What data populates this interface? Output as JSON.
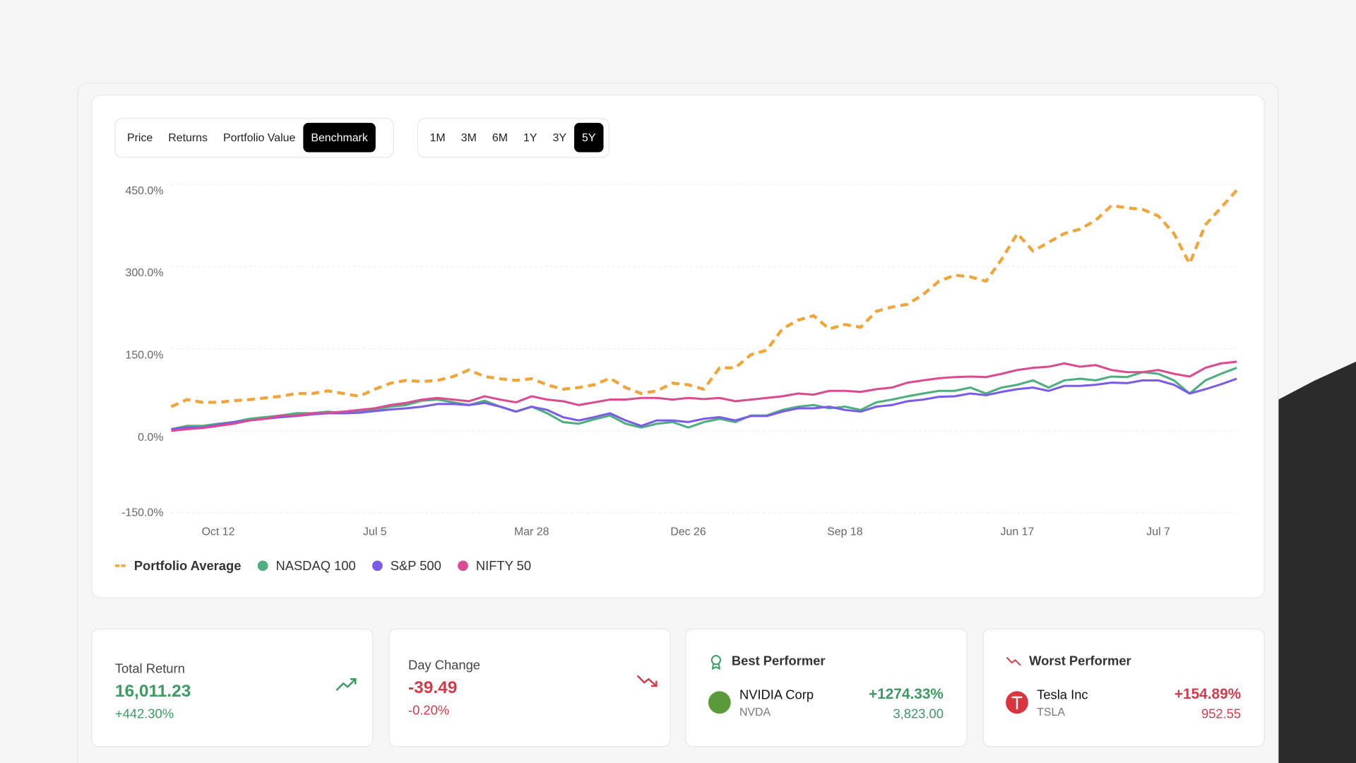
{
  "tabs": {
    "view": [
      "Price",
      "Returns",
      "Portfolio Value",
      "Benchmark"
    ],
    "active_view": "Benchmark",
    "range": [
      "1M",
      "3M",
      "6M",
      "1Y",
      "3Y",
      "5Y"
    ],
    "active_range": "5Y"
  },
  "chart_data": {
    "type": "line",
    "legend": "bottom",
    "grid": true,
    "categories": [
      null,
      null,
      null,
      "Oct 12",
      null,
      null,
      null,
      null,
      null,
      null,
      null,
      null,
      null,
      "Jul 5",
      null,
      null,
      null,
      null,
      null,
      null,
      null,
      null,
      null,
      "Mar 28",
      null,
      null,
      null,
      null,
      null,
      null,
      null,
      null,
      null,
      "Dec 26",
      null,
      null,
      null,
      null,
      null,
      null,
      null,
      null,
      null,
      "Sep 18",
      null,
      null,
      null,
      null,
      null,
      null,
      null,
      null,
      null,
      null,
      "Jun 17",
      null,
      null,
      null,
      null,
      null,
      null,
      null,
      null,
      "Jul 7",
      null,
      null,
      null,
      null,
      null
    ],
    "ylim": [
      -150,
      450
    ],
    "yticks": [
      {
        "value": -150,
        "label": "-150.0%"
      },
      {
        "value": 0,
        "label": "0.0%"
      },
      {
        "value": 150,
        "label": "150.0%"
      },
      {
        "value": 300,
        "label": "300.0%"
      },
      {
        "value": 450,
        "label": "450.0%"
      }
    ],
    "series": [
      {
        "name": "Portfolio Average",
        "color": "#f0a53a",
        "dashed": true,
        "values": [
          44,
          57,
          52,
          52,
          55,
          57,
          60,
          63,
          68,
          68,
          73,
          68,
          63,
          76,
          87,
          92,
          90,
          92,
          99,
          111,
          99,
          95,
          92,
          95,
          84,
          76,
          79,
          84,
          96,
          79,
          68,
          73,
          87,
          84,
          76,
          115,
          115,
          139,
          147,
          186,
          202,
          210,
          186,
          194,
          189,
          218,
          226,
          231,
          249,
          273,
          284,
          281,
          273,
          313,
          360,
          328,
          344,
          360,
          368,
          384,
          411,
          407,
          404,
          392,
          360,
          305,
          376,
          407,
          439
        ]
      },
      {
        "name": "NASDAQ 100",
        "color": "#4caf7d",
        "values": [
          3,
          9,
          9,
          13,
          16,
          22,
          25,
          28,
          32,
          32,
          35,
          32,
          35,
          39,
          44,
          47,
          55,
          57,
          52,
          47,
          55,
          44,
          35,
          44,
          32,
          16,
          13,
          21,
          28,
          13,
          6,
          13,
          16,
          6,
          16,
          22,
          16,
          28,
          28,
          38,
          44,
          47,
          41,
          44,
          38,
          52,
          57,
          63,
          68,
          73,
          73,
          79,
          68,
          79,
          84,
          92,
          79,
          92,
          95,
          92,
          99,
          98,
          107,
          104,
          92,
          68,
          92,
          104,
          115
        ]
      },
      {
        "name": "S&P 500",
        "color": "#7b5ce6",
        "values": [
          3,
          6,
          6,
          11,
          16,
          19,
          22,
          25,
          27,
          30,
          32,
          32,
          33,
          36,
          39,
          41,
          44,
          49,
          49,
          47,
          51,
          44,
          35,
          44,
          38,
          25,
          19,
          25,
          32,
          19,
          9,
          19,
          19,
          16,
          22,
          25,
          19,
          27,
          27,
          35,
          41,
          41,
          44,
          38,
          35,
          44,
          47,
          54,
          57,
          62,
          63,
          68,
          65,
          71,
          76,
          79,
          73,
          82,
          82,
          84,
          88,
          87,
          92,
          92,
          84,
          68,
          76,
          85,
          95
        ]
      },
      {
        "name": "NIFTY 50",
        "color": "#db4b92",
        "values": [
          0,
          3,
          5,
          9,
          13,
          19,
          22,
          28,
          28,
          32,
          33,
          35,
          38,
          41,
          47,
          51,
          57,
          60,
          57,
          54,
          63,
          57,
          52,
          63,
          57,
          54,
          47,
          52,
          57,
          57,
          60,
          60,
          57,
          60,
          58,
          60,
          54,
          57,
          60,
          63,
          68,
          66,
          73,
          73,
          71,
          76,
          79,
          88,
          92,
          96,
          98,
          99,
          98,
          104,
          111,
          115,
          117,
          123,
          117,
          120,
          111,
          107,
          107,
          111,
          104,
          99,
          115,
          123,
          126
        ]
      }
    ]
  },
  "stats": [
    {
      "label": "Total Return",
      "value": "16,011.23",
      "change": "+442.30%"
    },
    {
      "label": "Day Change",
      "value": "-39.49",
      "change": "-0.20%"
    }
  ],
  "performers": [
    {
      "heading": "Best Performer",
      "name": "NVIDIA Corp",
      "ticker": "NVDA",
      "change": "+1274.33%",
      "price": "3,823.00"
    },
    {
      "heading": "Worst Performer",
      "name": "Tesla Inc",
      "ticker": "TSLA",
      "change": "+154.89%",
      "price": "952.55"
    }
  ]
}
